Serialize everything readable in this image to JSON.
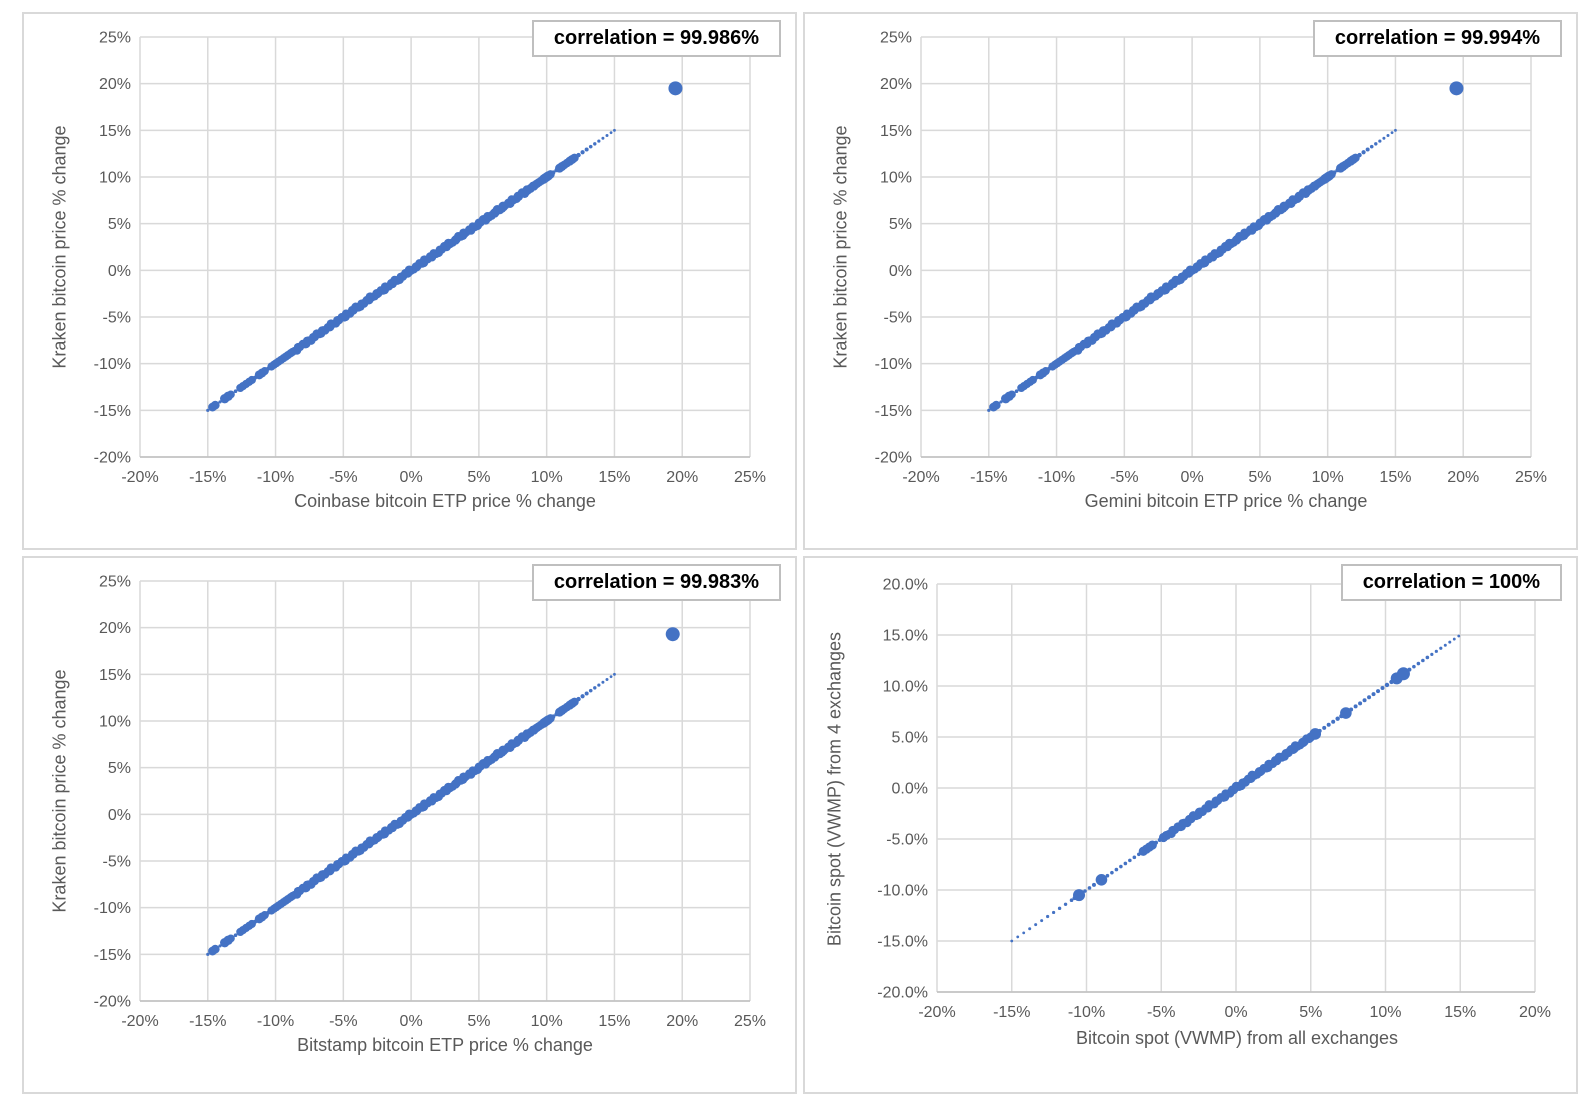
{
  "colors": {
    "marker_blue": "#4472C4",
    "gridline": "#d9d9d9",
    "axis_line": "#bfbfbf",
    "axis_text": "#595959",
    "annotation_border": "#bfbfbf",
    "annotation_text": "#000000"
  },
  "chart_data": [
    {
      "type": "scatter",
      "annotation": "correlation = 99.986%",
      "xlabel": "Coinbase bitcoin ETP price % change",
      "ylabel": "Kraken bitcoin price % change",
      "xlim": [
        -20,
        25
      ],
      "ylim": [
        -20,
        25
      ],
      "x_ticks": [
        "-20%",
        "-15%",
        "-10%",
        "-5%",
        "0%",
        "5%",
        "10%",
        "15%",
        "20%",
        "25%"
      ],
      "y_ticks": [
        "25%",
        "20%",
        "15%",
        "10%",
        "5%",
        "0%",
        "-5%",
        "-10%",
        "-15%",
        "-20%"
      ],
      "grid": true,
      "marker_color": "#4472C4",
      "note": "points lie on the identity line y = x from -15% to +15% with one outlier near +19.5%",
      "points": {
        "bands": [
          {
            "from": -8.6,
            "to": 9.0,
            "step": 0.12,
            "r": 4.2
          }
        ],
        "dots": [
          [
            -15.0,
            1.6
          ],
          [
            -14.65,
            4.4
          ],
          [
            -14.45,
            4.4
          ],
          [
            -14.1,
            1.6
          ],
          [
            -13.75,
            4.7
          ],
          [
            -13.5,
            4.7
          ],
          [
            -13.3,
            4.0
          ],
          [
            -12.95,
            1.8
          ],
          [
            -12.6,
            4.1
          ],
          [
            -12.4,
            4.1
          ],
          [
            -12.18,
            4.1
          ],
          [
            -11.95,
            4.1
          ],
          [
            -11.75,
            4.1
          ],
          [
            -11.5,
            2.0
          ],
          [
            -11.2,
            4.5
          ],
          [
            -11.0,
            4.5
          ],
          [
            -10.8,
            4.1
          ],
          [
            -10.55,
            2.0
          ],
          [
            -10.3,
            4.1
          ],
          [
            -10.12,
            4.1
          ],
          [
            -9.95,
            4.1
          ],
          [
            -9.78,
            4.1
          ],
          [
            -9.6,
            4.1
          ],
          [
            -9.42,
            4.1
          ],
          [
            -9.25,
            4.1
          ],
          [
            -9.08,
            4.1
          ],
          [
            -8.9,
            4.1
          ],
          [
            -8.75,
            4.1
          ],
          [
            9.12,
            4.3
          ],
          [
            9.28,
            4.3
          ],
          [
            9.45,
            4.3
          ],
          [
            9.62,
            4.3
          ],
          [
            9.8,
            4.7
          ],
          [
            9.95,
            4.7
          ],
          [
            10.1,
            4.7
          ],
          [
            10.28,
            4.3
          ],
          [
            10.5,
            2.0
          ],
          [
            10.72,
            2.0
          ],
          [
            10.95,
            4.5
          ],
          [
            11.12,
            4.5
          ],
          [
            11.3,
            4.3
          ],
          [
            11.5,
            4.3
          ],
          [
            11.7,
            4.5
          ],
          [
            11.88,
            4.5
          ],
          [
            12.05,
            4.3
          ],
          [
            12.35,
            2.2
          ],
          [
            12.65,
            2.1
          ],
          [
            12.95,
            2.0
          ],
          [
            13.25,
            1.8
          ],
          [
            13.55,
            1.7
          ],
          [
            13.85,
            1.6
          ],
          [
            14.15,
            1.5
          ],
          [
            14.45,
            1.5
          ],
          [
            14.75,
            1.4
          ],
          [
            15.0,
            1.4
          ],
          [
            19.5,
            7.0
          ]
        ]
      }
    },
    {
      "type": "scatter",
      "annotation": "correlation = 99.994%",
      "xlabel": "Gemini bitcoin ETP price % change",
      "ylabel": "Kraken bitcoin price % change",
      "xlim": [
        -20,
        25
      ],
      "ylim": [
        -20,
        25
      ],
      "x_ticks": [
        "-20%",
        "-15%",
        "-10%",
        "-5%",
        "0%",
        "5%",
        "10%",
        "15%",
        "20%",
        "25%"
      ],
      "y_ticks": [
        "25%",
        "20%",
        "15%",
        "10%",
        "5%",
        "0%",
        "-5%",
        "-10%",
        "-15%",
        "-20%"
      ],
      "grid": true,
      "marker_color": "#4472C4",
      "note": "points lie on the identity line y = x from -15% to +15% with one outlier near +19.5%",
      "points": {
        "bands": [
          {
            "from": -8.6,
            "to": 9.0,
            "step": 0.12,
            "r": 4.2
          }
        ],
        "dots": [
          [
            -15.0,
            1.6
          ],
          [
            -14.65,
            4.4
          ],
          [
            -14.45,
            4.4
          ],
          [
            -14.1,
            1.6
          ],
          [
            -13.75,
            4.7
          ],
          [
            -13.5,
            4.7
          ],
          [
            -13.3,
            4.0
          ],
          [
            -12.95,
            1.8
          ],
          [
            -12.6,
            4.1
          ],
          [
            -12.4,
            4.1
          ],
          [
            -12.18,
            4.1
          ],
          [
            -11.95,
            4.1
          ],
          [
            -11.75,
            4.1
          ],
          [
            -11.5,
            2.0
          ],
          [
            -11.2,
            4.5
          ],
          [
            -11.0,
            4.5
          ],
          [
            -10.8,
            4.1
          ],
          [
            -10.55,
            2.0
          ],
          [
            -10.3,
            4.1
          ],
          [
            -10.12,
            4.1
          ],
          [
            -9.95,
            4.1
          ],
          [
            -9.78,
            4.1
          ],
          [
            -9.6,
            4.1
          ],
          [
            -9.42,
            4.1
          ],
          [
            -9.25,
            4.1
          ],
          [
            -9.08,
            4.1
          ],
          [
            -8.9,
            4.1
          ],
          [
            -8.75,
            4.1
          ],
          [
            9.12,
            4.3
          ],
          [
            9.28,
            4.3
          ],
          [
            9.45,
            4.3
          ],
          [
            9.62,
            4.3
          ],
          [
            9.8,
            4.7
          ],
          [
            9.95,
            4.7
          ],
          [
            10.1,
            4.7
          ],
          [
            10.28,
            4.3
          ],
          [
            10.5,
            2.0
          ],
          [
            10.72,
            2.0
          ],
          [
            10.95,
            4.5
          ],
          [
            11.12,
            4.5
          ],
          [
            11.3,
            4.3
          ],
          [
            11.5,
            4.3
          ],
          [
            11.7,
            4.5
          ],
          [
            11.88,
            4.5
          ],
          [
            12.05,
            4.3
          ],
          [
            12.35,
            2.2
          ],
          [
            12.65,
            2.1
          ],
          [
            12.95,
            2.0
          ],
          [
            13.25,
            1.8
          ],
          [
            13.55,
            1.7
          ],
          [
            13.85,
            1.6
          ],
          [
            14.15,
            1.5
          ],
          [
            14.45,
            1.5
          ],
          [
            14.75,
            1.4
          ],
          [
            15.0,
            1.4
          ],
          [
            19.5,
            7.0
          ]
        ]
      }
    },
    {
      "type": "scatter",
      "annotation": "correlation = 99.983%",
      "xlabel": "Bitstamp bitcoin ETP price % change",
      "ylabel": "Kraken bitcoin price % change",
      "xlim": [
        -20,
        25
      ],
      "ylim": [
        -20,
        25
      ],
      "x_ticks": [
        "-20%",
        "-15%",
        "-10%",
        "-5%",
        "0%",
        "5%",
        "10%",
        "15%",
        "20%",
        "25%"
      ],
      "y_ticks": [
        "25%",
        "20%",
        "15%",
        "10%",
        "5%",
        "0%",
        "-5%",
        "-10%",
        "-15%",
        "-20%"
      ],
      "grid": true,
      "marker_color": "#4472C4",
      "note": "points lie on the identity line y = x from -15% to +15% with one outlier near +19.3%",
      "points": {
        "bands": [
          {
            "from": -8.6,
            "to": 9.0,
            "step": 0.12,
            "r": 4.2
          }
        ],
        "dots": [
          [
            -15.0,
            1.6
          ],
          [
            -14.65,
            4.4
          ],
          [
            -14.45,
            4.4
          ],
          [
            -14.1,
            1.6
          ],
          [
            -13.75,
            4.7
          ],
          [
            -13.5,
            4.7
          ],
          [
            -13.3,
            4.0
          ],
          [
            -12.95,
            1.8
          ],
          [
            -12.6,
            4.1
          ],
          [
            -12.4,
            4.1
          ],
          [
            -12.18,
            4.1
          ],
          [
            -11.95,
            4.1
          ],
          [
            -11.75,
            4.1
          ],
          [
            -11.5,
            2.0
          ],
          [
            -11.2,
            4.5
          ],
          [
            -11.0,
            4.5
          ],
          [
            -10.8,
            4.1
          ],
          [
            -10.55,
            2.0
          ],
          [
            -10.3,
            4.1
          ],
          [
            -10.12,
            4.1
          ],
          [
            -9.95,
            4.1
          ],
          [
            -9.78,
            4.1
          ],
          [
            -9.6,
            4.1
          ],
          [
            -9.42,
            4.1
          ],
          [
            -9.25,
            4.1
          ],
          [
            -9.08,
            4.1
          ],
          [
            -8.9,
            4.1
          ],
          [
            -8.75,
            4.1
          ],
          [
            9.12,
            4.3
          ],
          [
            9.28,
            4.3
          ],
          [
            9.45,
            4.3
          ],
          [
            9.62,
            4.3
          ],
          [
            9.8,
            4.7
          ],
          [
            9.95,
            4.7
          ],
          [
            10.1,
            4.7
          ],
          [
            10.28,
            4.3
          ],
          [
            10.5,
            2.0
          ],
          [
            10.72,
            2.0
          ],
          [
            10.95,
            4.5
          ],
          [
            11.12,
            4.5
          ],
          [
            11.3,
            4.3
          ],
          [
            11.5,
            4.3
          ],
          [
            11.7,
            4.5
          ],
          [
            11.88,
            4.5
          ],
          [
            12.05,
            4.3
          ],
          [
            12.35,
            2.2
          ],
          [
            12.65,
            2.1
          ],
          [
            12.95,
            2.0
          ],
          [
            13.25,
            1.8
          ],
          [
            13.55,
            1.7
          ],
          [
            13.85,
            1.6
          ],
          [
            14.15,
            1.5
          ],
          [
            14.45,
            1.5
          ],
          [
            14.75,
            1.4
          ],
          [
            15.0,
            1.4
          ],
          [
            19.3,
            7.0
          ]
        ]
      }
    },
    {
      "type": "scatter",
      "annotation": "correlation = 100%",
      "xlabel": "Bitcoin spot (VWMP) from all exchanges",
      "ylabel": "Bitcoin spot (VWMP) from 4 exchanges",
      "xlim": [
        -20,
        20
      ],
      "ylim": [
        -20,
        20
      ],
      "x_ticks": [
        "-20%",
        "-15%",
        "-10%",
        "-5%",
        "0%",
        "5%",
        "10%",
        "15%",
        "20%"
      ],
      "y_ticks": [
        "20.0%",
        "15.0%",
        "10.0%",
        "5.0%",
        "0.0%",
        "-5.0%",
        "-10.0%",
        "-15.0%",
        "-20.0%"
      ],
      "grid": true,
      "marker_color": "#4472C4",
      "note": "points lie exactly on the identity line y = x from -15% to +15%",
      "points": {
        "bands": [
          {
            "from": -4.5,
            "to": 4.8,
            "step": 0.12,
            "r": 4.3
          }
        ],
        "dots": [
          [
            -15.0,
            1.4
          ],
          [
            -14.6,
            1.4
          ],
          [
            -14.2,
            1.4
          ],
          [
            -13.8,
            1.5
          ],
          [
            -13.4,
            1.5
          ],
          [
            -13.0,
            1.5
          ],
          [
            -12.6,
            1.6
          ],
          [
            -12.2,
            1.6
          ],
          [
            -11.8,
            1.7
          ],
          [
            -11.4,
            1.7
          ],
          [
            -11.0,
            1.8
          ],
          [
            -10.8,
            2.0
          ],
          [
            -10.5,
            6.0
          ],
          [
            -10.1,
            1.8
          ],
          [
            -9.8,
            1.8
          ],
          [
            -9.5,
            2.0
          ],
          [
            -9.0,
            5.8
          ],
          [
            -8.6,
            1.8
          ],
          [
            -8.3,
            1.8
          ],
          [
            -8.0,
            1.8
          ],
          [
            -7.7,
            1.8
          ],
          [
            -7.4,
            1.8
          ],
          [
            -7.1,
            1.8
          ],
          [
            -6.8,
            1.8
          ],
          [
            -6.5,
            1.8
          ],
          [
            -6.2,
            4.6
          ],
          [
            -6.0,
            4.6
          ],
          [
            -5.8,
            4.6
          ],
          [
            -5.6,
            4.6
          ],
          [
            -5.35,
            2.0
          ],
          [
            -5.1,
            2.0
          ],
          [
            -4.85,
            4.6
          ],
          [
            -4.65,
            4.6
          ],
          [
            5.0,
            4.6
          ],
          [
            5.3,
            5.8
          ],
          [
            5.6,
            2.0
          ],
          [
            5.9,
            2.0
          ],
          [
            6.2,
            2.0
          ],
          [
            6.5,
            2.0
          ],
          [
            6.8,
            2.2
          ],
          [
            7.05,
            2.2
          ],
          [
            7.35,
            5.8
          ],
          [
            7.7,
            2.0
          ],
          [
            8.0,
            2.0
          ],
          [
            8.3,
            2.0
          ],
          [
            8.6,
            2.0
          ],
          [
            8.9,
            2.0
          ],
          [
            9.2,
            2.0
          ],
          [
            9.5,
            2.0
          ],
          [
            9.8,
            2.0
          ],
          [
            10.1,
            2.2
          ],
          [
            10.4,
            2.2
          ],
          [
            10.75,
            6.0
          ],
          [
            11.2,
            6.5
          ],
          [
            11.6,
            2.0
          ],
          [
            11.9,
            1.8
          ],
          [
            12.2,
            1.8
          ],
          [
            12.5,
            1.8
          ],
          [
            12.8,
            1.8
          ],
          [
            13.1,
            1.6
          ],
          [
            13.4,
            1.6
          ],
          [
            13.7,
            1.6
          ],
          [
            14.0,
            1.5
          ],
          [
            14.3,
            1.5
          ],
          [
            14.6,
            1.4
          ],
          [
            14.9,
            1.4
          ]
        ]
      }
    }
  ]
}
